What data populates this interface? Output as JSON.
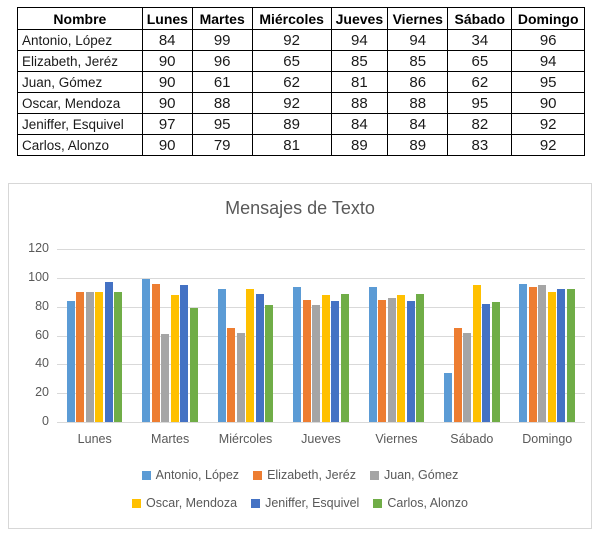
{
  "table": {
    "columns": [
      "Nombre",
      "Lunes",
      "Martes",
      "Miércoles",
      "Jueves",
      "Viernes",
      "Sábado",
      "Domingo"
    ],
    "rows": [
      {
        "name": "Antonio, López",
        "values": [
          84,
          99,
          92,
          94,
          94,
          34,
          96
        ]
      },
      {
        "name": "Elizabeth, Jeréz",
        "values": [
          90,
          96,
          65,
          85,
          85,
          65,
          94
        ]
      },
      {
        "name": "Juan, Gómez",
        "values": [
          90,
          61,
          62,
          81,
          86,
          62,
          95
        ]
      },
      {
        "name": "Oscar, Mendoza",
        "values": [
          90,
          88,
          92,
          88,
          88,
          95,
          90
        ]
      },
      {
        "name": "Jeniffer, Esquivel",
        "values": [
          97,
          95,
          89,
          84,
          84,
          82,
          92
        ]
      },
      {
        "name": "Carlos, Alonzo",
        "values": [
          90,
          79,
          81,
          89,
          89,
          83,
          92
        ]
      }
    ],
    "column_widths_pct": [
      22.0,
      8.8,
      10.6,
      13.9,
      10.0,
      10.6,
      11.3,
      12.8
    ]
  },
  "chart_data": {
    "type": "bar",
    "title": "Mensajes de Texto",
    "title_color": "#595959",
    "categories": [
      "Lunes",
      "Martes",
      "Miércoles",
      "Jueves",
      "Viernes",
      "Sábado",
      "Domingo"
    ],
    "series": [
      {
        "name": "Antonio, López",
        "color": "#5B9BD5",
        "values": [
          84,
          99,
          92,
          94,
          94,
          34,
          96
        ]
      },
      {
        "name": "Elizabeth, Jeréz",
        "color": "#ED7D31",
        "values": [
          90,
          96,
          65,
          85,
          85,
          65,
          94
        ]
      },
      {
        "name": "Juan, Gómez",
        "color": "#A5A5A5",
        "values": [
          90,
          61,
          62,
          81,
          86,
          62,
          95
        ]
      },
      {
        "name": "Oscar, Mendoza",
        "color": "#FFC000",
        "values": [
          90,
          88,
          92,
          88,
          88,
          95,
          90
        ]
      },
      {
        "name": "Jeniffer, Esquivel",
        "color": "#4472C4",
        "values": [
          97,
          95,
          89,
          84,
          84,
          82,
          92
        ]
      },
      {
        "name": "Carlos, Alonzo",
        "color": "#70AD47",
        "values": [
          90,
          79,
          81,
          89,
          89,
          83,
          92
        ]
      }
    ],
    "xlabel": "",
    "ylabel": "",
    "ylim": [
      0,
      120
    ],
    "yticks": [
      0,
      20,
      40,
      60,
      80,
      100,
      120
    ],
    "grid": true,
    "gridline_color": "#D9D9D9",
    "axis_text_color": "#595959",
    "legend_position": "bottom",
    "legend_rows": [
      [
        0,
        1,
        2
      ],
      [
        3,
        4,
        5
      ]
    ]
  }
}
